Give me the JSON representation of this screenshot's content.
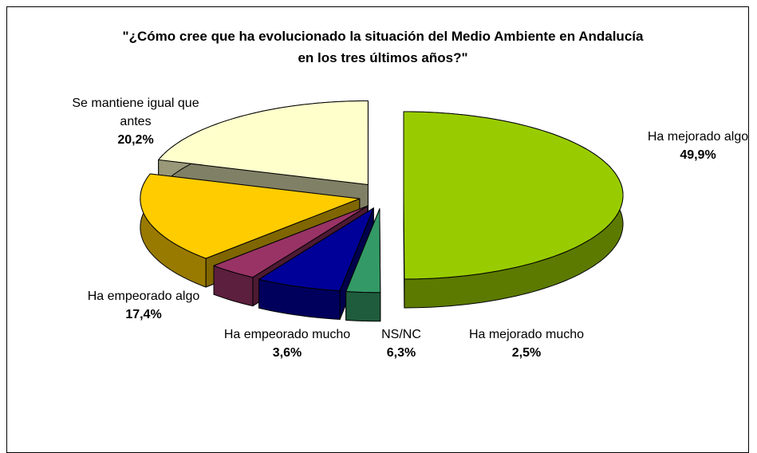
{
  "chart_data": {
    "type": "pie",
    "title": "\"¿Cómo cree que ha evolucionado la situación del Medio Ambiente en Andalucía en los tres últimos años?\"",
    "categories": [
      "Ha mejorado algo",
      "Ha mejorado mucho",
      "NS/NC",
      "Ha empeorado mucho",
      "Ha empeorado algo",
      "Se mantiene igual que antes"
    ],
    "values": [
      49.9,
      2.5,
      6.3,
      3.6,
      17.4,
      20.2
    ],
    "value_labels": [
      "49,9%",
      "2,5%",
      "6,3%",
      "3,6%",
      "17,4%",
      "20,2%"
    ],
    "colors": [
      "#99cc00",
      "#339966",
      "#000099",
      "#993366",
      "#ffcc00",
      "#ffffcc"
    ]
  }
}
